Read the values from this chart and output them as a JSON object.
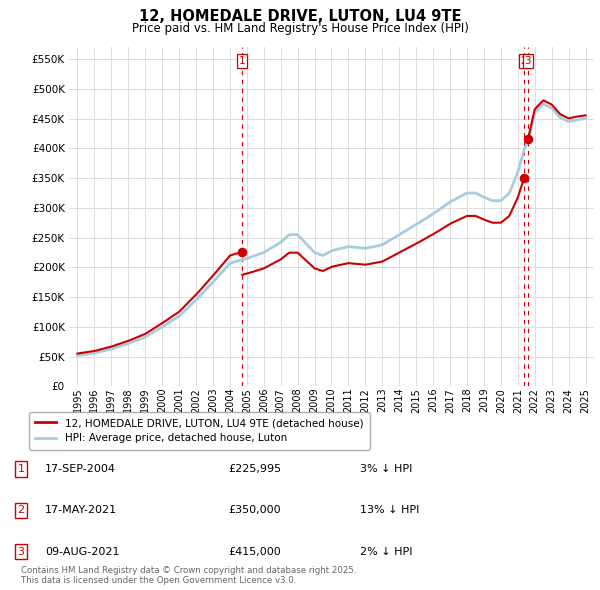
{
  "title": "12, HOMEDALE DRIVE, LUTON, LU4 9TE",
  "subtitle": "Price paid vs. HM Land Registry's House Price Index (HPI)",
  "ylim": [
    0,
    570000
  ],
  "xlim_years": [
    1994.5,
    2025.5
  ],
  "x_ticks": [
    1995,
    1996,
    1997,
    1998,
    1999,
    2000,
    2001,
    2002,
    2003,
    2004,
    2005,
    2006,
    2007,
    2008,
    2009,
    2010,
    2011,
    2012,
    2013,
    2014,
    2015,
    2016,
    2017,
    2018,
    2019,
    2020,
    2021,
    2022,
    2023,
    2024,
    2025
  ],
  "hpi_color": "#a8cce0",
  "price_color": "#cc0000",
  "vline_color": "#cc0000",
  "grid_color": "#dddddd",
  "background_color": "#ffffff",
  "legend_label_price": "12, HOMEDALE DRIVE, LUTON, LU4 9TE (detached house)",
  "legend_label_hpi": "HPI: Average price, detached house, Luton",
  "transactions": [
    {
      "id": 1,
      "date": "17-SEP-2004",
      "year": 2004.71,
      "price": 225995,
      "pct": "3%",
      "dir": "↓"
    },
    {
      "id": 2,
      "date": "17-MAY-2021",
      "year": 2021.37,
      "price": 350000,
      "pct": "13%",
      "dir": "↓"
    },
    {
      "id": 3,
      "date": "09-AUG-2021",
      "year": 2021.6,
      "price": 415000,
      "pct": "2%",
      "dir": "↓"
    }
  ],
  "footnote": "Contains HM Land Registry data © Crown copyright and database right 2025.\nThis data is licensed under the Open Government Licence v3.0.",
  "hpi_anchors_x": [
    1995,
    1996,
    1997,
    1998,
    1999,
    2000,
    2001,
    2002,
    2003,
    2004,
    2005,
    2006,
    2007,
    2007.5,
    2008,
    2008.5,
    2009,
    2009.5,
    2010,
    2011,
    2012,
    2013,
    2014,
    2015,
    2016,
    2017,
    2018,
    2018.5,
    2019,
    2019.5,
    2020,
    2020.5,
    2021,
    2021.4,
    2021.6,
    2022,
    2022.5,
    2023,
    2023.5,
    2024,
    2024.5,
    2025
  ],
  "hpi_anchors_y": [
    52000,
    56000,
    63000,
    72000,
    83000,
    100000,
    118000,
    145000,
    175000,
    207000,
    215000,
    225000,
    242000,
    255000,
    255000,
    240000,
    225000,
    220000,
    228000,
    235000,
    232000,
    238000,
    255000,
    272000,
    290000,
    310000,
    325000,
    325000,
    318000,
    312000,
    312000,
    325000,
    360000,
    400000,
    410000,
    460000,
    475000,
    468000,
    452000,
    445000,
    448000,
    450000
  ],
  "t1_year": 2004.71,
  "t1_price": 225995,
  "t2_year": 2021.37,
  "t2_price": 350000,
  "t3_year": 2021.6,
  "t3_price": 415000
}
